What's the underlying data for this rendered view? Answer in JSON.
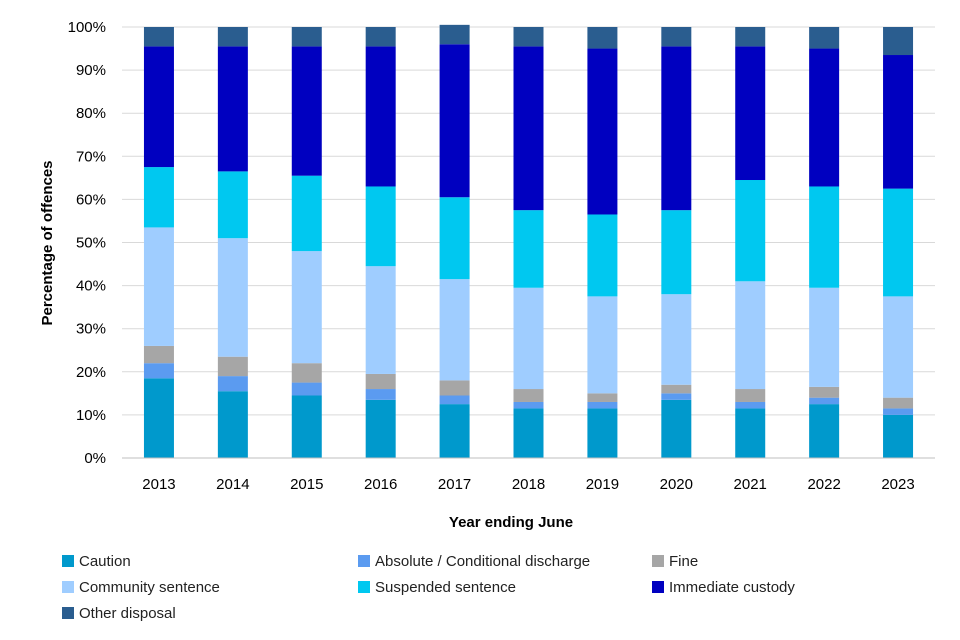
{
  "chart_data": {
    "type": "bar",
    "stacked": true,
    "title": "",
    "xlabel": "Year ending June",
    "ylabel": "Percentage of offences",
    "ylim": [
      0,
      100
    ],
    "y_ticks": [
      "0%",
      "10%",
      "20%",
      "30%",
      "40%",
      "50%",
      "60%",
      "70%",
      "80%",
      "90%",
      "100%"
    ],
    "grid": true,
    "legend_position": "bottom",
    "categories": [
      "2013",
      "2014",
      "2015",
      "2016",
      "2017",
      "2018",
      "2019",
      "2020",
      "2021",
      "2022",
      "2023"
    ],
    "series": [
      {
        "name": "Caution",
        "color": "#0099cc",
        "values": [
          18.5,
          15.5,
          14.5,
          13.5,
          12.5,
          11.5,
          11.5,
          13.5,
          11.5,
          12.5,
          10.0
        ]
      },
      {
        "name": "Absolute / Conditional discharge",
        "color": "#5b9bf0",
        "values": [
          3.5,
          3.5,
          3.0,
          2.5,
          2.0,
          1.5,
          1.5,
          1.5,
          1.5,
          1.5,
          1.5
        ]
      },
      {
        "name": "Fine",
        "color": "#a6a6a6",
        "values": [
          4.0,
          4.5,
          4.5,
          3.5,
          3.5,
          3.0,
          2.0,
          2.0,
          3.0,
          2.5,
          2.5
        ]
      },
      {
        "name": "Community sentence",
        "color": "#9fcdff",
        "values": [
          27.5,
          27.5,
          26.0,
          25.0,
          23.5,
          23.5,
          22.5,
          21.0,
          25.0,
          23.0,
          23.5
        ]
      },
      {
        "name": "Suspended sentence",
        "color": "#00c8f0",
        "values": [
          14.0,
          15.5,
          17.5,
          18.5,
          19.0,
          18.0,
          19.0,
          19.5,
          23.5,
          23.5,
          25.0
        ]
      },
      {
        "name": "Immediate custody",
        "color": "#0000c0",
        "values": [
          28.0,
          29.0,
          30.0,
          32.5,
          35.5,
          38.0,
          38.5,
          38.0,
          31.0,
          32.0,
          31.0
        ]
      },
      {
        "name": "Other disposal",
        "color": "#2a5d8f",
        "values": [
          4.5,
          4.5,
          4.5,
          4.5,
          4.5,
          4.5,
          5.0,
          4.5,
          4.5,
          5.0,
          6.5
        ]
      }
    ]
  }
}
